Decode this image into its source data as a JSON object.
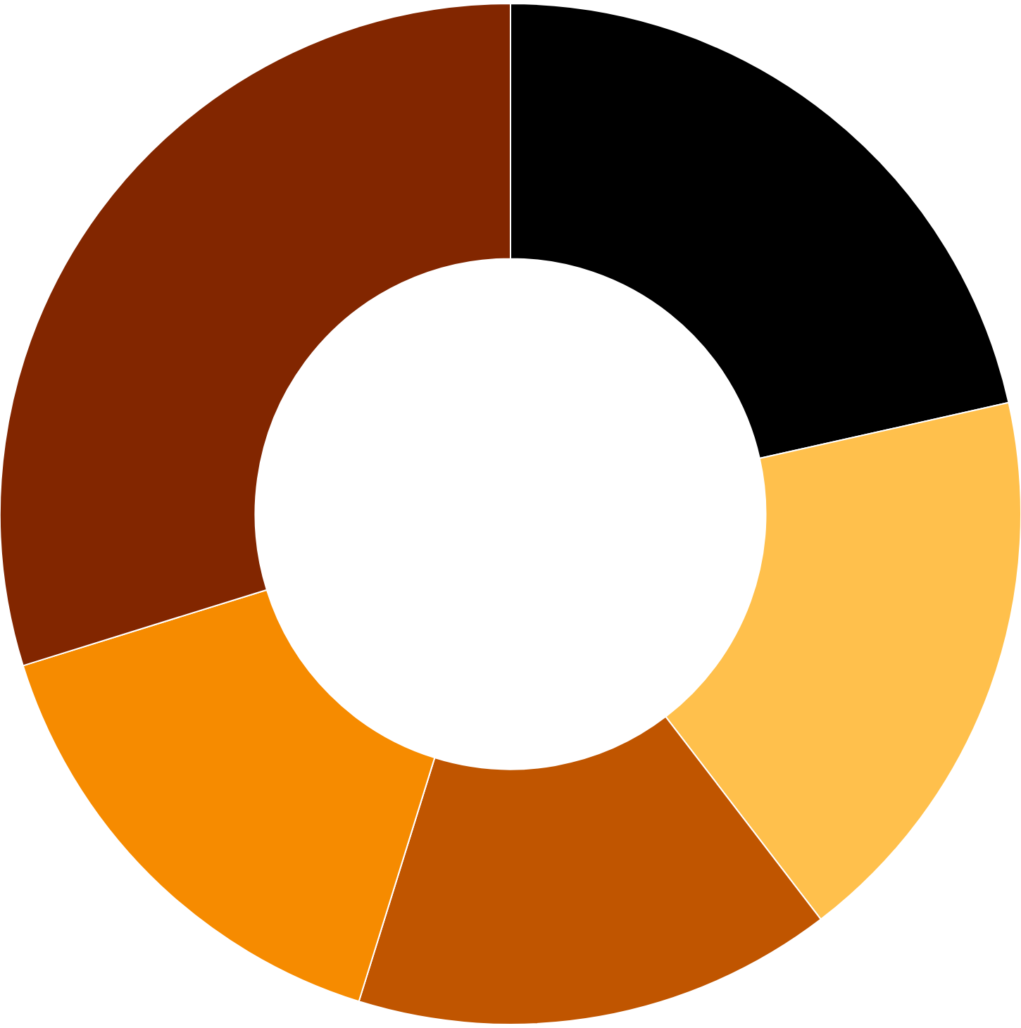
{
  "chart_data": {
    "type": "donut",
    "categories": [
      null,
      null,
      null,
      null,
      null
    ],
    "values": [
      21.5,
      18.1,
      15.2,
      15.4,
      29.8
    ],
    "colors": [
      "#000000",
      "#ffc04c",
      "#c05500",
      "#f68b00",
      "#822600"
    ]
  }
}
